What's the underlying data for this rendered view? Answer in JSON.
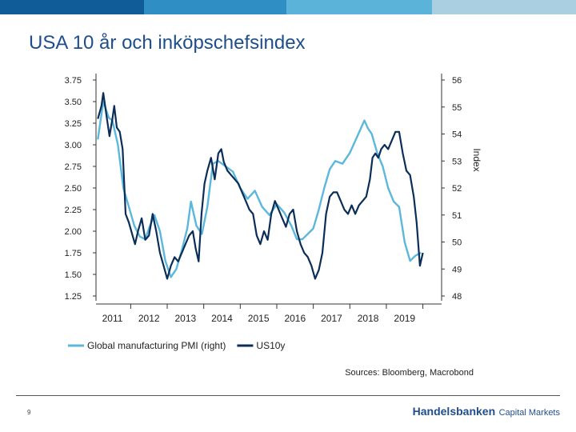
{
  "header": {
    "bar_colors": [
      "#0f5c98",
      "#2f8fc4",
      "#5bb3d9",
      "#a9cfe0"
    ]
  },
  "title": "USA 10 år och inköpschefsindex",
  "footer": {
    "page_number": "9",
    "brand_main": "Handelsbanken",
    "brand_sub": "Capital Markets"
  },
  "chart_data": {
    "type": "line",
    "title": "USA 10 år och inköpschefsindex",
    "source": "Sources: Bloomberg, Macrobond",
    "x_ticks": [
      "2011",
      "2012",
      "2013",
      "2014",
      "2015",
      "2016",
      "2017",
      "2018",
      "2019"
    ],
    "x_range": [
      2010.55,
      2019.75
    ],
    "left_axis": {
      "ticks": [
        "3.75",
        "3.50",
        "3.25",
        "3.00",
        "2.75",
        "2.50",
        "2.25",
        "2.00",
        "1.75",
        "1.50",
        "1.25"
      ],
      "ylim": [
        1.25,
        3.75
      ]
    },
    "right_axis": {
      "label": "Index",
      "ticks": [
        "56",
        "55",
        "54",
        "53",
        "52",
        "51",
        "50",
        "49",
        "48"
      ],
      "ylim": [
        48,
        56
      ]
    },
    "legend_position": "bottom-left",
    "series": [
      {
        "name": "Global manufacturing PMI (right)",
        "axis": "right",
        "color": "#5bb8dc",
        "x": [
          2010.6,
          2010.75,
          2010.9,
          2011.0,
          2011.15,
          2011.3,
          2011.45,
          2011.6,
          2011.75,
          2011.9,
          2012.0,
          2012.15,
          2012.3,
          2012.45,
          2012.6,
          2012.75,
          2012.9,
          2013.05,
          2013.15,
          2013.3,
          2013.45,
          2013.6,
          2013.75,
          2013.9,
          2014.1,
          2014.3,
          2014.5,
          2014.7,
          2014.9,
          2015.1,
          2015.3,
          2015.5,
          2015.7,
          2015.9,
          2016.05,
          2016.2,
          2016.35,
          2016.5,
          2016.65,
          2016.8,
          2016.95,
          2017.1,
          2017.3,
          2017.5,
          2017.7,
          2017.9,
          2018.0,
          2018.1,
          2018.25,
          2018.4,
          2018.55,
          2018.7,
          2018.85,
          2019.0,
          2019.15,
          2019.3,
          2019.45
        ],
        "values": [
          53.8,
          55.2,
          54.6,
          54.5,
          53.6,
          52.0,
          51.3,
          50.6,
          50.2,
          50.1,
          50.5,
          51.0,
          50.4,
          49.3,
          48.7,
          49.0,
          49.7,
          50.5,
          51.5,
          50.6,
          50.3,
          51.3,
          52.9,
          53.0,
          52.8,
          52.6,
          52.0,
          51.6,
          51.9,
          51.3,
          51.0,
          51.4,
          51.1,
          50.6,
          50.1,
          50.1,
          50.3,
          50.5,
          51.2,
          52.0,
          52.7,
          53.0,
          52.9,
          53.3,
          53.9,
          54.5,
          54.2,
          54.0,
          53.3,
          52.8,
          52.0,
          51.5,
          51.3,
          50.0,
          49.3,
          49.5,
          49.6
        ]
      },
      {
        "name": "US10y",
        "axis": "left",
        "color": "#0b2e59",
        "x": [
          2010.6,
          2010.7,
          2010.75,
          2010.8,
          2010.85,
          2010.92,
          2011.0,
          2011.05,
          2011.12,
          2011.2,
          2011.28,
          2011.36,
          2011.45,
          2011.55,
          2011.62,
          2011.7,
          2011.8,
          2011.9,
          2012.0,
          2012.1,
          2012.2,
          2012.3,
          2012.4,
          2012.5,
          2012.6,
          2012.7,
          2012.8,
          2012.9,
          2013.0,
          2013.1,
          2013.2,
          2013.28,
          2013.36,
          2013.44,
          2013.52,
          2013.6,
          2013.7,
          2013.8,
          2013.9,
          2013.98,
          2014.05,
          2014.15,
          2014.25,
          2014.35,
          2014.45,
          2014.55,
          2014.65,
          2014.75,
          2014.85,
          2014.95,
          2015.05,
          2015.15,
          2015.25,
          2015.35,
          2015.45,
          2015.55,
          2015.65,
          2015.75,
          2015.85,
          2015.95,
          2016.05,
          2016.15,
          2016.25,
          2016.35,
          2016.45,
          2016.55,
          2016.65,
          2016.75,
          2016.85,
          2016.95,
          2017.05,
          2017.15,
          2017.25,
          2017.35,
          2017.45,
          2017.55,
          2017.65,
          2017.75,
          2017.85,
          2017.95,
          2018.05,
          2018.12,
          2018.2,
          2018.28,
          2018.36,
          2018.45,
          2018.55,
          2018.65,
          2018.75,
          2018.85,
          2018.95,
          2019.05,
          2019.15,
          2019.25,
          2019.33,
          2019.42,
          2019.5
        ],
        "values": [
          3.3,
          3.45,
          3.6,
          3.45,
          3.3,
          3.1,
          3.3,
          3.45,
          3.2,
          3.15,
          2.95,
          2.2,
          2.1,
          1.95,
          1.85,
          2.0,
          2.15,
          1.9,
          1.95,
          2.2,
          2.0,
          1.75,
          1.6,
          1.45,
          1.6,
          1.7,
          1.65,
          1.75,
          1.85,
          1.95,
          2.0,
          1.8,
          1.65,
          2.2,
          2.55,
          2.7,
          2.85,
          2.6,
          2.9,
          2.95,
          2.8,
          2.7,
          2.65,
          2.6,
          2.55,
          2.45,
          2.35,
          2.25,
          2.2,
          1.95,
          1.85,
          2.0,
          1.9,
          2.2,
          2.35,
          2.25,
          2.15,
          2.05,
          2.2,
          2.25,
          2.0,
          1.85,
          1.75,
          1.7,
          1.6,
          1.45,
          1.55,
          1.75,
          2.2,
          2.4,
          2.45,
          2.45,
          2.35,
          2.25,
          2.2,
          2.3,
          2.2,
          2.3,
          2.35,
          2.4,
          2.6,
          2.85,
          2.9,
          2.85,
          2.95,
          3.0,
          2.95,
          3.05,
          3.15,
          3.15,
          2.9,
          2.7,
          2.65,
          2.4,
          2.1,
          1.6,
          1.75
        ]
      }
    ]
  }
}
